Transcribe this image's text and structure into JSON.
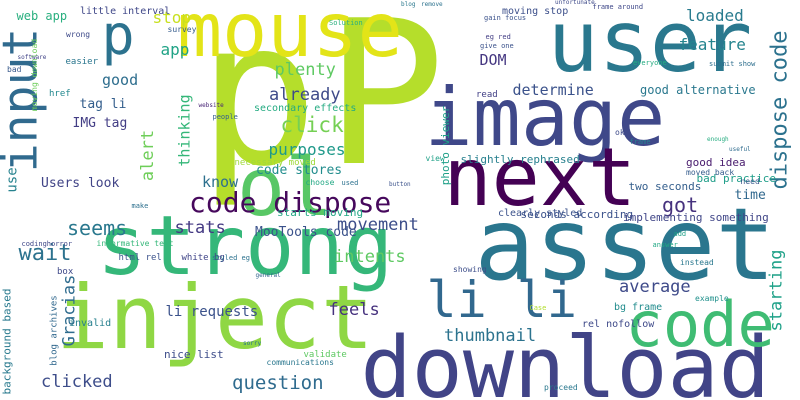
{
  "words": [
    {
      "text": "p",
      "color": "#b5de2b"
    },
    {
      "text": "P",
      "color": "#b5de2b"
    },
    {
      "text": "mouse",
      "color": "#e3e418"
    },
    {
      "text": "user",
      "color": "#2a788e"
    },
    {
      "text": "image",
      "color": "#3f4889"
    },
    {
      "text": "next",
      "color": "#440154"
    },
    {
      "text": "asset",
      "color": "#2a768e"
    },
    {
      "text": "strong",
      "color": "#35b779"
    },
    {
      "text": "inject",
      "color": "#8fd744"
    },
    {
      "text": "download",
      "color": "#414487"
    },
    {
      "text": "code",
      "color": "#3fbc73"
    },
    {
      "text": "ol",
      "color": "#58c765"
    },
    {
      "text": "input",
      "color": "#306a8e"
    },
    {
      "text": "li li",
      "color": "#31688e"
    },
    {
      "text": "code dispose",
      "color": "#46085c"
    },
    {
      "text": "dispose code",
      "color": "#2c728e"
    },
    {
      "text": "p",
      "color": "#2c728e"
    },
    {
      "text": "feature",
      "color": "#25848e"
    },
    {
      "text": "loaded",
      "color": "#297b8e"
    },
    {
      "text": "stop",
      "color": "#c8e020"
    },
    {
      "text": "app",
      "color": "#20a386"
    },
    {
      "text": "plenty",
      "color": "#5ec962"
    },
    {
      "text": "DOM",
      "color": "#453781"
    },
    {
      "text": "determine",
      "color": "#3b528b"
    },
    {
      "text": "already",
      "color": "#3e4a89"
    },
    {
      "text": "good alternative",
      "color": "#2a788e"
    },
    {
      "text": "good",
      "color": "#2e6e8e"
    },
    {
      "text": "click",
      "color": "#75d054"
    },
    {
      "text": "purposes",
      "color": "#1f998a"
    },
    {
      "text": "thinking",
      "color": "#35b779"
    },
    {
      "text": "alert",
      "color": "#6ece58"
    },
    {
      "text": "IMG tag",
      "color": "#433e85"
    },
    {
      "text": "tag li",
      "color": "#355f8d"
    },
    {
      "text": "know",
      "color": "#2d708e"
    },
    {
      "text": "code stores",
      "color": "#228d8d"
    },
    {
      "text": "movement",
      "color": "#3d4e8a"
    },
    {
      "text": "got",
      "color": "#46327e"
    },
    {
      "text": "time",
      "color": "#31688e"
    },
    {
      "text": "two seconds",
      "color": "#355f8d"
    },
    {
      "text": "Users look",
      "color": "#414487"
    },
    {
      "text": "use",
      "color": "#26828e"
    },
    {
      "text": "stats",
      "color": "#443983"
    },
    {
      "text": "MooTools code",
      "color": "#3b528b"
    },
    {
      "text": "intents",
      "color": "#5ec962"
    },
    {
      "text": "seems",
      "color": "#2a788e"
    },
    {
      "text": "wait",
      "color": "#2c728e"
    },
    {
      "text": "Gracias",
      "color": "#2f6c8e"
    },
    {
      "text": "feels",
      "color": "#46327e"
    },
    {
      "text": "average",
      "color": "#3e4a89"
    },
    {
      "text": "starting",
      "color": "#1fa188"
    },
    {
      "text": "thumbnail",
      "color": "#2c738e"
    },
    {
      "text": "li requests",
      "color": "#3b528b"
    },
    {
      "text": "question",
      "color": "#2f6b8e"
    },
    {
      "text": "clicked",
      "color": "#3d4d8a"
    },
    {
      "text": "web app",
      "color": "#29af7f"
    },
    {
      "text": "little interval",
      "color": "#3f4788"
    },
    {
      "text": "photo viewer",
      "color": "#1fa088"
    },
    {
      "text": "slightly rephrased",
      "color": "#27808e"
    },
    {
      "text": "moving stop",
      "color": "#3c4f8a"
    },
    {
      "text": "secondary effects",
      "color": "#25ab82"
    },
    {
      "text": "good idea",
      "color": "#481b6d"
    },
    {
      "text": "bad practice",
      "color": "#1f9e89"
    },
    {
      "text": "seconds according",
      "color": "#3b528b"
    },
    {
      "text": "starts moving",
      "color": "#22a785"
    },
    {
      "text": "background based",
      "color": "#297a8e"
    },
    {
      "text": "nice list",
      "color": "#3d4d8a"
    },
    {
      "text": "bg frame",
      "color": "#228c8d"
    },
    {
      "text": "rel nofollow",
      "color": "#3e4989"
    },
    {
      "text": "html rel",
      "color": "#3b528b"
    },
    {
      "text": "white bg",
      "color": "#404588"
    },
    {
      "text": "invalid",
      "color": "#27808e"
    },
    {
      "text": "blog archives",
      "color": "#31688e"
    },
    {
      "text": "read",
      "color": "#424086"
    },
    {
      "text": "survey",
      "color": "#365c8d"
    },
    {
      "text": "wrong",
      "color": "#3e4a89"
    },
    {
      "text": "easier",
      "color": "#2a768e"
    },
    {
      "text": "href",
      "color": "#23888e"
    },
    {
      "text": "bad",
      "color": "#38598c"
    },
    {
      "text": "make",
      "color": "#2d708e"
    },
    {
      "text": "box",
      "color": "#3e4989"
    },
    {
      "text": "moving download",
      "color": "#6ccd5a"
    },
    {
      "text": "implementing something",
      "color": "#404688"
    },
    {
      "text": "clearly styled",
      "color": "#3b528b"
    },
    {
      "text": "communications",
      "color": "#2a778e"
    },
    {
      "text": "validate",
      "color": "#5ec962"
    },
    {
      "text": "necessary moved",
      "color": "#9fda3a"
    },
    {
      "text": "informative text",
      "color": "#35b779"
    },
    {
      "text": "eg red",
      "color": "#433e85"
    },
    {
      "text": "give one",
      "color": "#3b528b"
    },
    {
      "text": "everyone",
      "color": "#25ac82"
    },
    {
      "text": "submit show",
      "color": "#2e6f8e"
    },
    {
      "text": "frame around",
      "color": "#3f4889"
    },
    {
      "text": "gain focus",
      "color": "#3b528b"
    },
    {
      "text": "moved back",
      "color": "#365d8d"
    },
    {
      "text": "need",
      "color": "#38588c"
    },
    {
      "text": "instead",
      "color": "#2a788e"
    },
    {
      "text": "example",
      "color": "#21918c"
    },
    {
      "text": "codinghorror",
      "color": "#3f4788"
    },
    {
      "text": "styled eg",
      "color": "#2c728e"
    },
    {
      "text": "showing",
      "color": "#3d4e8a"
    },
    {
      "text": "proceed",
      "color": "#2a788e"
    },
    {
      "text": "choose",
      "color": "#22a884"
    },
    {
      "text": "used",
      "color": "#2c718e"
    },
    {
      "text": "view",
      "color": "#1fa187"
    },
    {
      "text": "people",
      "color": "#35608d"
    },
    {
      "text": "ok",
      "color": "#3e4a89"
    },
    {
      "text": "Case",
      "color": "#b2dd2d"
    },
    {
      "text": "Solution",
      "color": "#2ab07f"
    },
    {
      "text": "frame",
      "color": "#26828e"
    },
    {
      "text": "enough",
      "color": "#27ad81"
    },
    {
      "text": "useful",
      "color": "#2f6c8e"
    },
    {
      "text": "answer",
      "color": "#22a884"
    },
    {
      "text": "add",
      "color": "#1fa188"
    },
    {
      "text": "sorry",
      "color": "#2c718e"
    },
    {
      "text": "general",
      "color": "#33638d"
    },
    {
      "text": "website",
      "color": "#482475"
    },
    {
      "text": "button",
      "color": "#3b528b"
    },
    {
      "text": "software",
      "color": "#414487"
    },
    {
      "text": "blog",
      "color": "#2a788e"
    },
    {
      "text": "remove",
      "color": "#2c728e"
    },
    {
      "text": "unfortunate",
      "color": "#3e4a89"
    }
  ]
}
